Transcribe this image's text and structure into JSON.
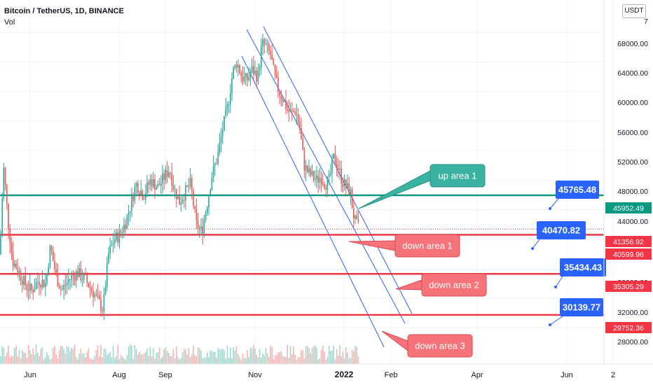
{
  "header": {
    "symbol": "Bitcoin / TetherUS, 1D, BINANCE",
    "indicator": "Vol",
    "currency_button": "USDT"
  },
  "colors": {
    "up": "#26a69a",
    "down": "#ef5350",
    "teal_line": "#089981",
    "red_line": "#f23645",
    "channel": "#2962ff",
    "callout_teal": "#3bb3a2",
    "callout_red": "#f7737a",
    "target_blue": "#2962ff",
    "price_tag_green": "#089981",
    "price_tag_red": "#f23645"
  },
  "chart_data": {
    "type": "candlestick",
    "x_axis": {
      "labels": [
        "Jun",
        "Aug",
        "Sep",
        "Nov",
        "2022",
        "Feb",
        "Apr",
        "Jun",
        "2"
      ],
      "bold_label": "2022"
    },
    "y_axis": {
      "labels": [
        "7",
        "68000.00",
        "64000.00",
        "60000.00",
        "56000.00",
        "52000.00",
        "48000.00",
        "44000.00",
        "36000.00",
        "32000.00",
        "28000.00"
      ],
      "ylim": [
        25000,
        74000
      ]
    },
    "price_tags": [
      {
        "value": "45952.49",
        "color": "green"
      },
      {
        "value": "41356.92",
        "color": "red"
      },
      {
        "value": "40599.96",
        "color": "red"
      },
      {
        "value": "35305.29",
        "color": "red"
      },
      {
        "value": "29752.36",
        "color": "red"
      }
    ],
    "horizontal_levels": [
      {
        "price": 45952.49,
        "color": "teal"
      },
      {
        "price": 40599.96,
        "color": "red"
      },
      {
        "price": 35305.29,
        "color": "red"
      },
      {
        "price": 29752.36,
        "color": "red"
      }
    ],
    "callouts": [
      {
        "text": "up area 1",
        "style": "teal"
      },
      {
        "text": "down area 1",
        "style": "red"
      },
      {
        "text": "down area 2",
        "style": "red"
      },
      {
        "text": "down area 3",
        "style": "red"
      }
    ],
    "targets": [
      {
        "text": "45765.48"
      },
      {
        "text": "40470.82"
      },
      {
        "text": "35434.43"
      },
      {
        "text": "30139.77"
      }
    ],
    "volume_visible": true,
    "grid": true
  }
}
